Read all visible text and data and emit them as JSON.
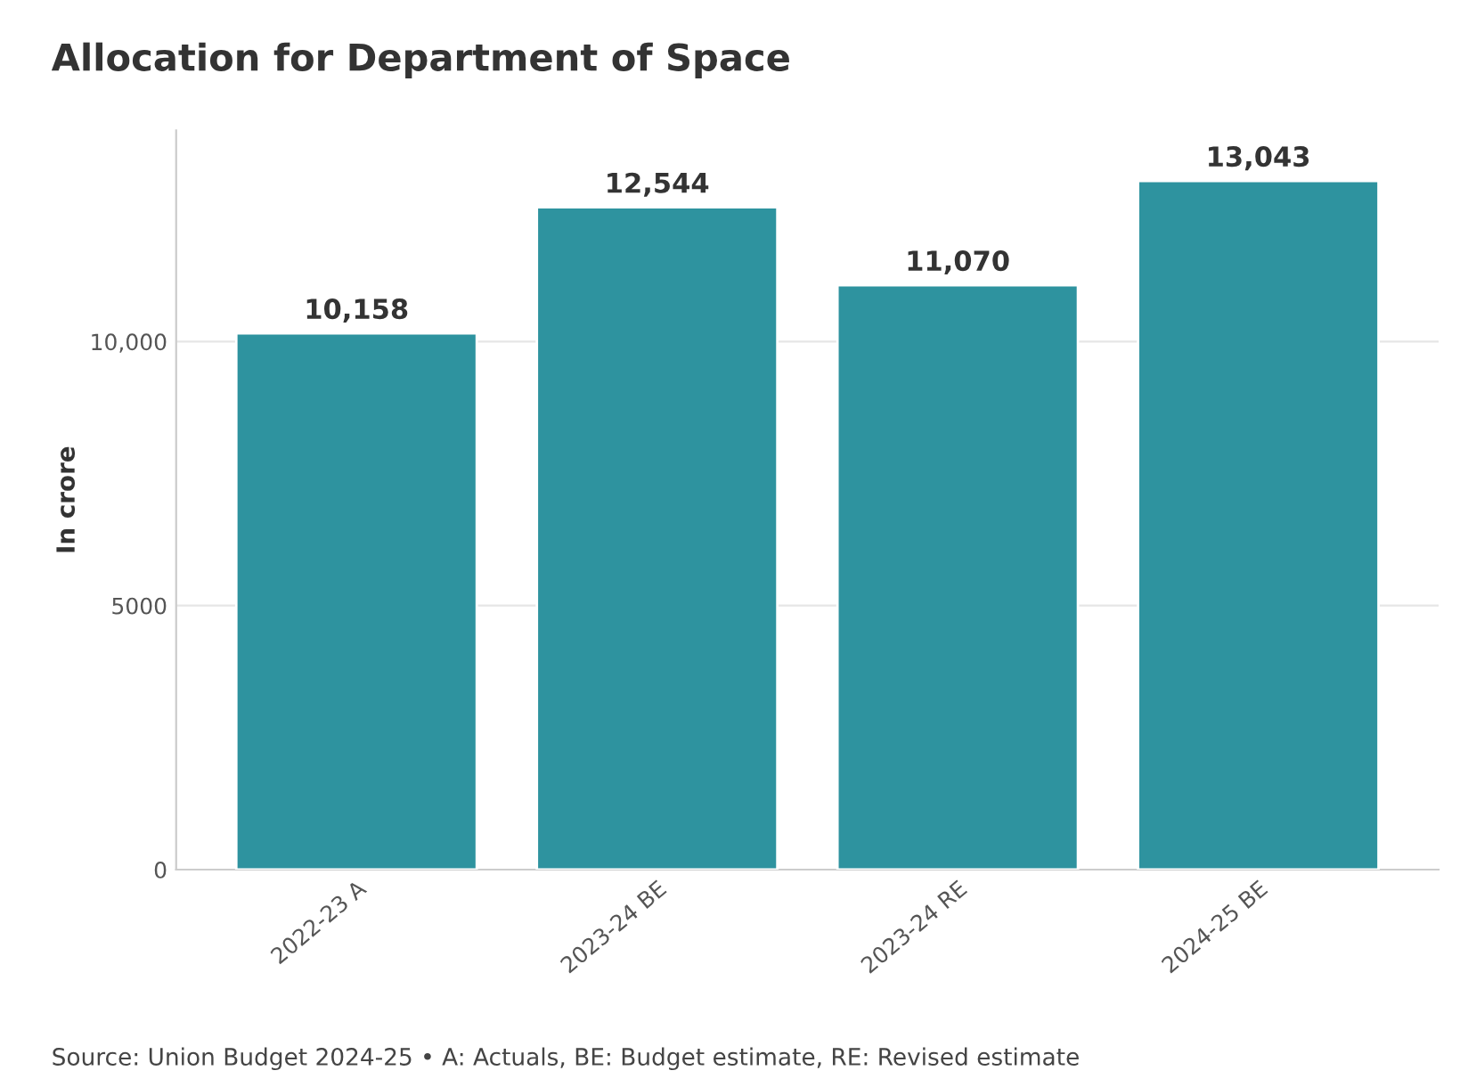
{
  "chart_data": {
    "type": "bar",
    "title": "Allocation for Department of Space",
    "ylabel": "In crore",
    "categories": [
      "2022-23 A",
      "2023-24 BE",
      "2023-24 RE",
      "2024-25 BE"
    ],
    "values": [
      10158,
      12544,
      11070,
      13043
    ],
    "value_labels": [
      "10,158",
      "12,544",
      "11,070",
      "13,043"
    ],
    "color": "#2e939f",
    "ylim": [
      0,
      14000
    ],
    "yticks": [
      0,
      5000,
      {
        "value": 10000,
        "label": "10,000"
      }
    ],
    "grid": "y",
    "annotations": [
      "Source: Union Budget 2024-25 • A: Actuals, BE: Budget estimate, RE: Revised estimate"
    ]
  }
}
